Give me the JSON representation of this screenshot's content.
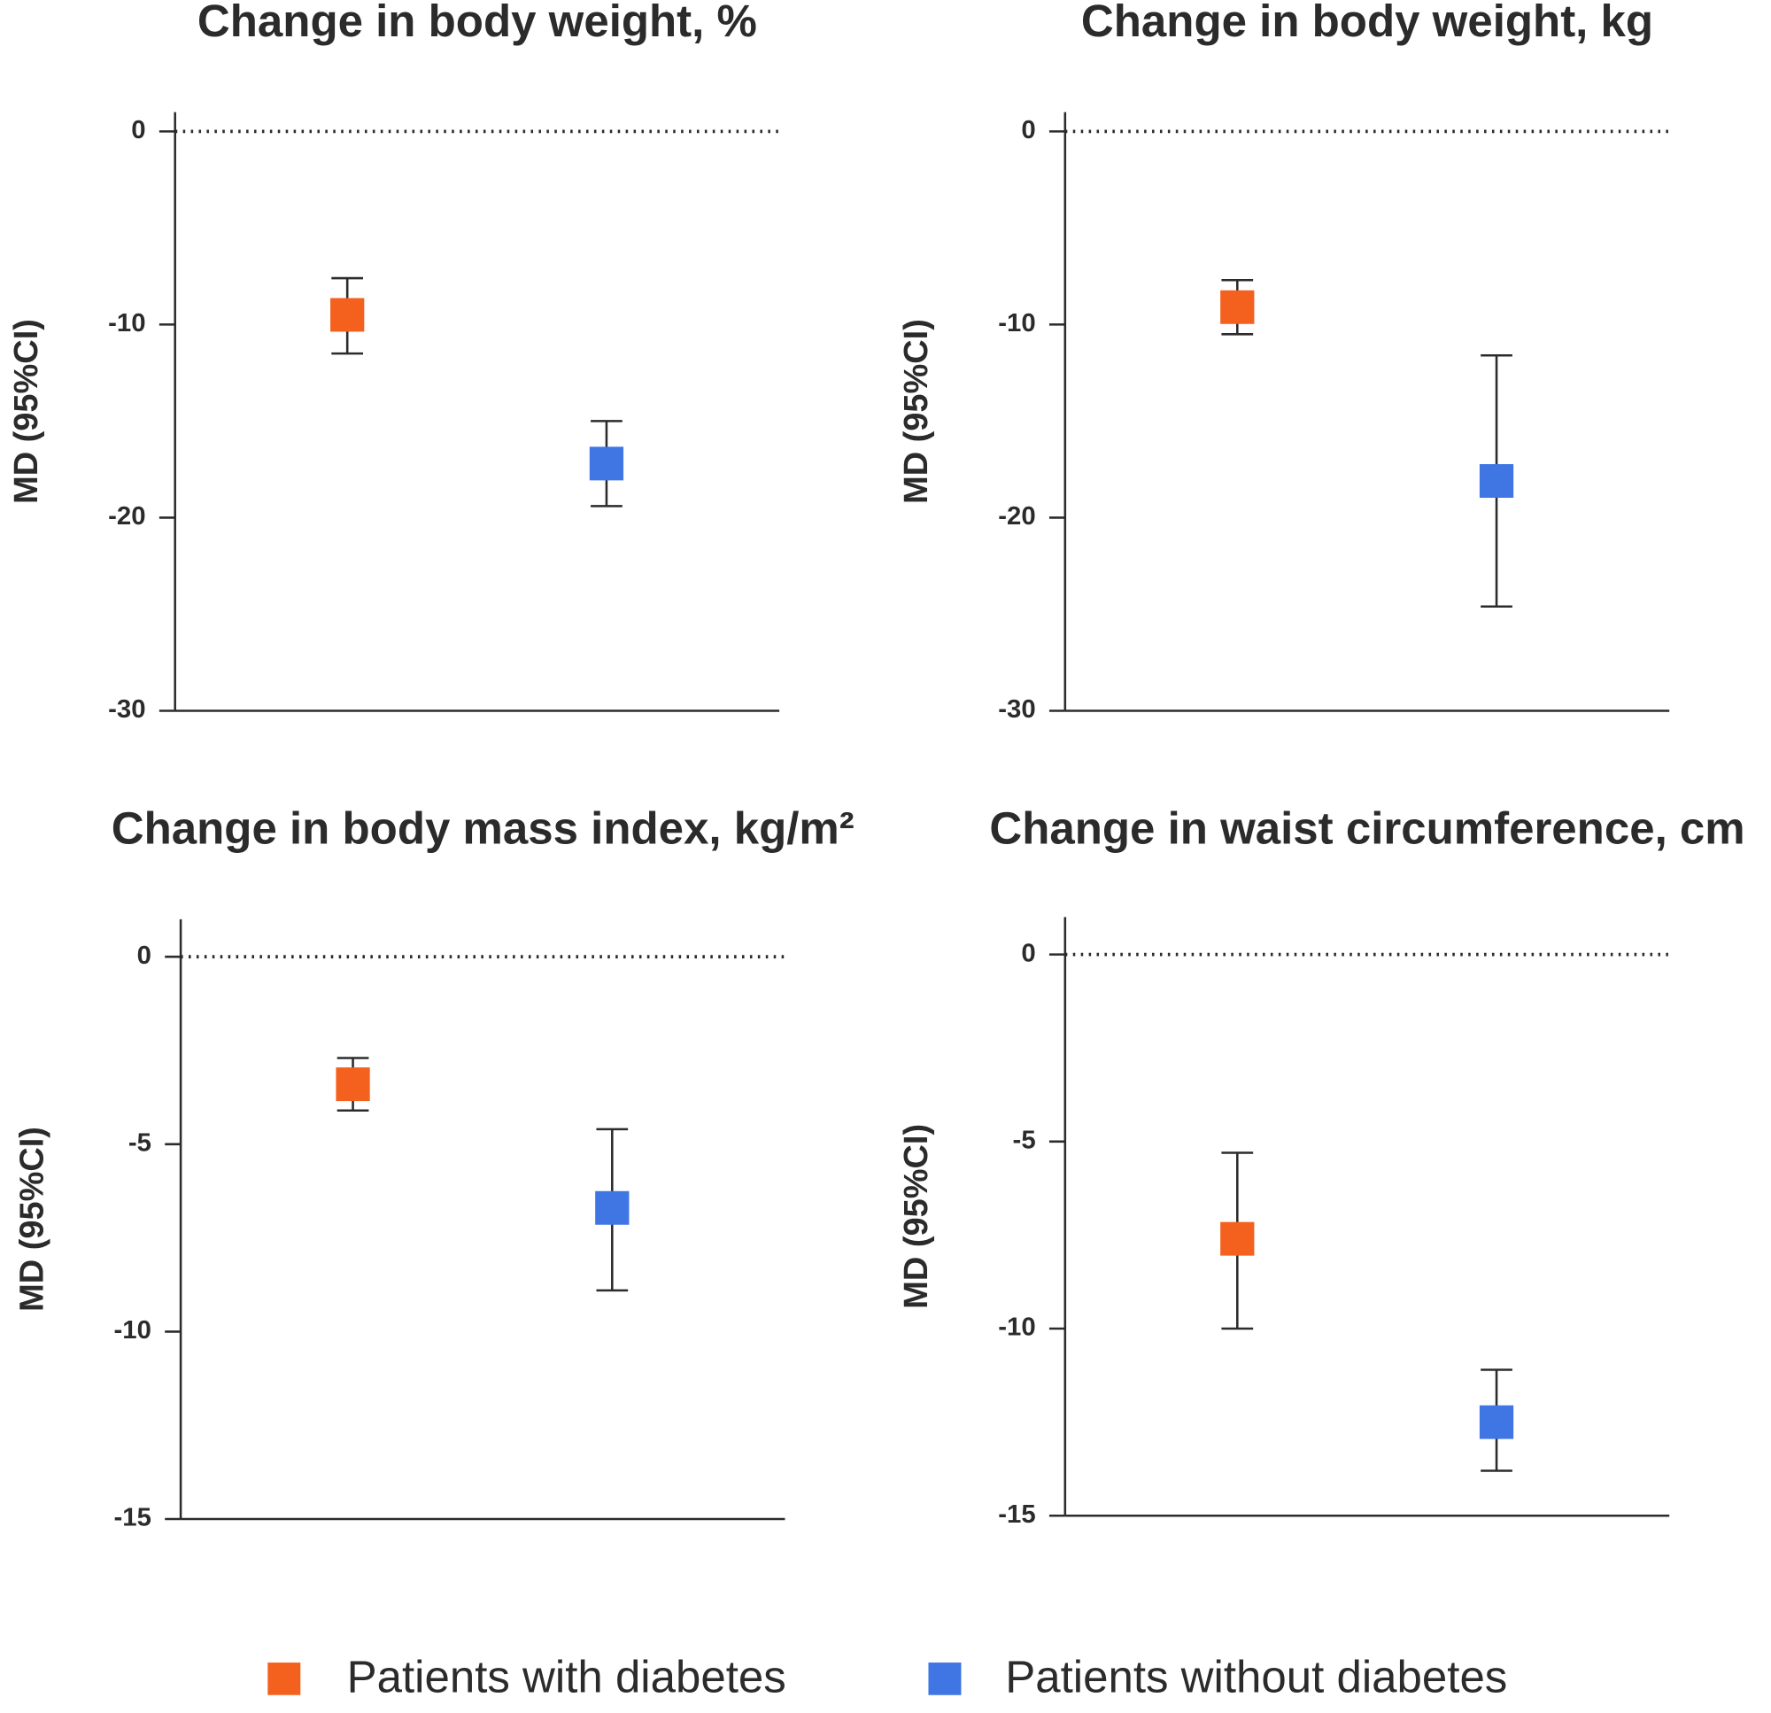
{
  "legend": [
    {
      "name": "Patients with diabetes",
      "color": "#f4611f"
    },
    {
      "name": "Patients without diabetes",
      "color": "#3f76e4"
    }
  ],
  "chart_data": [
    {
      "type": "errorbar",
      "title": "Change in body weight, %",
      "y_label": "MD (95%CI)",
      "ylim": [
        -30,
        1
      ],
      "yticks": [
        0,
        -10,
        -20,
        -30
      ],
      "reference_line": 0,
      "series": [
        {
          "values": [
            -9.5
          ],
          "lower": [
            -11.5
          ],
          "upper": [
            -7.6
          ]
        },
        {
          "values": [
            -17.2
          ],
          "lower": [
            -19.4
          ],
          "upper": [
            -15
          ]
        }
      ]
    },
    {
      "type": "errorbar",
      "title": "Change in body weight, kg",
      "y_label": "MD (95%CI)",
      "ylim": [
        -30,
        1
      ],
      "yticks": [
        0,
        -10,
        -20,
        -30
      ],
      "reference_line": 0,
      "series": [
        {
          "values": [
            -9.1
          ],
          "lower": [
            -10.5
          ],
          "upper": [
            -7.7
          ]
        },
        {
          "values": [
            -18.1
          ],
          "lower": [
            -24.6
          ],
          "upper": [
            -11.6
          ]
        }
      ]
    },
    {
      "type": "errorbar",
      "title": "Change in body mass index, kg/m²",
      "y_label": "MD (95%CI)",
      "ylim": [
        -15,
        1
      ],
      "yticks": [
        0,
        -5,
        -10,
        -15
      ],
      "reference_line": 0,
      "series": [
        {
          "values": [
            -3.4
          ],
          "lower": [
            -4.1
          ],
          "upper": [
            -2.7
          ]
        },
        {
          "values": [
            -6.7
          ],
          "lower": [
            -8.9
          ],
          "upper": [
            -4.6
          ]
        }
      ]
    },
    {
      "type": "errorbar",
      "title": "Change in waist circumference, cm",
      "y_label": "MD (95%CI)",
      "ylim": [
        -15,
        1
      ],
      "yticks": [
        0,
        -5,
        -10,
        -15
      ],
      "reference_line": 0,
      "series": [
        {
          "values": [
            -7.6
          ],
          "lower": [
            -10
          ],
          "upper": [
            -5.3
          ]
        },
        {
          "values": [
            -12.5
          ],
          "lower": [
            -13.8
          ],
          "upper": [
            -11.1
          ]
        }
      ]
    }
  ]
}
